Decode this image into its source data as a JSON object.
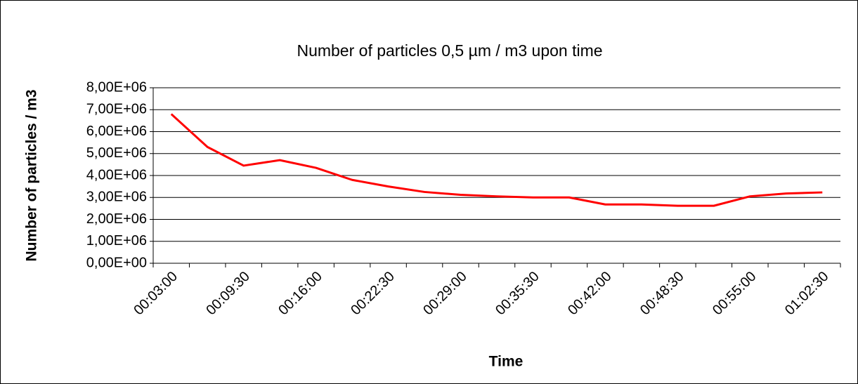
{
  "chart_data": {
    "type": "line",
    "title": "Number of particles 0,5 µm / m3 upon time",
    "x_label": "Time",
    "y_label": "Number of particles / m3",
    "categories": [
      "00:03:00",
      null,
      "00:09:30",
      null,
      "00:16:00",
      null,
      "00:22:30",
      null,
      "00:29:00",
      null,
      "00:35:30",
      null,
      "00:42:00",
      null,
      "00:48:30",
      null,
      "00:55:00",
      null,
      "01:02:30"
    ],
    "series": [
      {
        "name": "Number of particles 0,5 µm / m3",
        "color": "#ff0000",
        "values": [
          6800000,
          5300000,
          4450000,
          4700000,
          4350000,
          3800000,
          3500000,
          3250000,
          3120000,
          3050000,
          3000000,
          3000000,
          2680000,
          2680000,
          2620000,
          2620000,
          3050000,
          3180000,
          3230000
        ]
      }
    ],
    "ylim": [
      0,
      8000000
    ],
    "yticks": [
      {
        "value": 0,
        "label": "0,00E+00"
      },
      {
        "value": 1000000,
        "label": "1,00E+06"
      },
      {
        "value": 2000000,
        "label": "2,00E+06"
      },
      {
        "value": 3000000,
        "label": "3,00E+06"
      },
      {
        "value": 4000000,
        "label": "4,00E+06"
      },
      {
        "value": 5000000,
        "label": "5,00E+06"
      },
      {
        "value": 6000000,
        "label": "6,00E+06"
      },
      {
        "value": 7000000,
        "label": "7,00E+06"
      },
      {
        "value": 8000000,
        "label": "8,00E+06"
      }
    ],
    "grid": true
  }
}
